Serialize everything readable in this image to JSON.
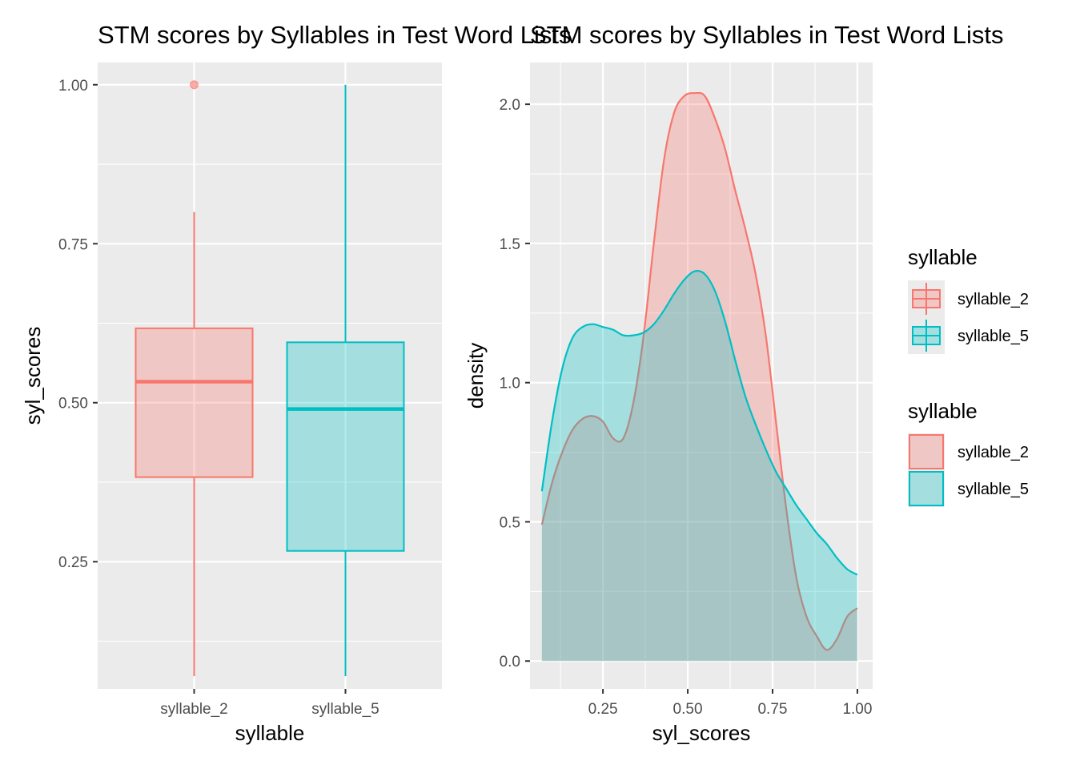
{
  "chart_data": [
    {
      "type": "box",
      "title": "STM scores by Syllables in Test Word Lists",
      "xlabel": "syllable",
      "ylabel": "syl_scores",
      "categories": [
        "syllable_2",
        "syllable_5"
      ],
      "ylim": [
        0.05,
        1.035
      ],
      "yticks": [
        0.25,
        0.5,
        0.75,
        1.0
      ],
      "ytick_labels": [
        "0.25",
        "0.50",
        "0.75",
        "1.00"
      ],
      "series": [
        {
          "name": "syllable_2",
          "whisker_low": 0.07,
          "q1": 0.383,
          "median": 0.533,
          "q3": 0.617,
          "whisker_high": 0.8,
          "outliers": [
            1.0
          ],
          "color": "#F8766D"
        },
        {
          "name": "syllable_5",
          "whisker_low": 0.07,
          "q1": 0.267,
          "median": 0.49,
          "q3": 0.595,
          "whisker_high": 1.0,
          "outliers": [],
          "color": "#00BFC4"
        }
      ],
      "grid": true
    },
    {
      "type": "area",
      "title": "STM scores by Syllables in Test Word Lists",
      "xlabel": "syl_scores",
      "ylabel": "density",
      "xlim": [
        0.035,
        1.045
      ],
      "ylim": [
        -0.1,
        2.15
      ],
      "xticks": [
        0.25,
        0.5,
        0.75,
        1.0
      ],
      "xtick_labels": [
        "0.25",
        "0.50",
        "0.75",
        "1.00"
      ],
      "yticks": [
        0.0,
        0.5,
        1.0,
        1.5,
        2.0
      ],
      "ytick_labels": [
        "0.0",
        "0.5",
        "1.0",
        "1.5",
        "2.0"
      ],
      "series": [
        {
          "name": "syllable_2",
          "color": "#F8766D",
          "x": [
            0.07,
            0.1,
            0.13,
            0.16,
            0.19,
            0.22,
            0.25,
            0.28,
            0.31,
            0.34,
            0.37,
            0.4,
            0.43,
            0.46,
            0.49,
            0.52,
            0.55,
            0.58,
            0.61,
            0.64,
            0.67,
            0.7,
            0.73,
            0.76,
            0.79,
            0.82,
            0.85,
            0.88,
            0.91,
            0.94,
            0.97,
            1.0
          ],
          "y": [
            0.49,
            0.64,
            0.75,
            0.83,
            0.87,
            0.88,
            0.86,
            0.8,
            0.8,
            0.93,
            1.17,
            1.5,
            1.8,
            1.97,
            2.03,
            2.04,
            2.03,
            1.95,
            1.84,
            1.69,
            1.55,
            1.39,
            1.17,
            0.86,
            0.55,
            0.3,
            0.16,
            0.09,
            0.04,
            0.08,
            0.16,
            0.19
          ]
        },
        {
          "name": "syllable_5",
          "color": "#00BFC4",
          "x": [
            0.07,
            0.1,
            0.13,
            0.16,
            0.19,
            0.22,
            0.25,
            0.28,
            0.31,
            0.34,
            0.37,
            0.4,
            0.43,
            0.46,
            0.49,
            0.52,
            0.55,
            0.58,
            0.61,
            0.64,
            0.67,
            0.7,
            0.73,
            0.76,
            0.79,
            0.82,
            0.85,
            0.88,
            0.91,
            0.94,
            0.97,
            1.0
          ],
          "y": [
            0.61,
            0.86,
            1.05,
            1.16,
            1.2,
            1.21,
            1.2,
            1.19,
            1.17,
            1.17,
            1.18,
            1.21,
            1.26,
            1.32,
            1.37,
            1.4,
            1.39,
            1.33,
            1.22,
            1.08,
            0.95,
            0.85,
            0.76,
            0.68,
            0.62,
            0.56,
            0.51,
            0.46,
            0.42,
            0.37,
            0.33,
            0.31
          ]
        }
      ],
      "grid": true
    }
  ],
  "legends": [
    {
      "title": "syllable",
      "kind": "box",
      "placement": "right",
      "entries": [
        {
          "label": "syllable_2",
          "color": "#F8766D"
        },
        {
          "label": "syllable_5",
          "color": "#00BFC4"
        }
      ]
    },
    {
      "title": "syllable",
      "kind": "fill",
      "placement": "right",
      "entries": [
        {
          "label": "syllable_2",
          "color": "#F8766D"
        },
        {
          "label": "syllable_5",
          "color": "#00BFC4"
        }
      ]
    }
  ]
}
